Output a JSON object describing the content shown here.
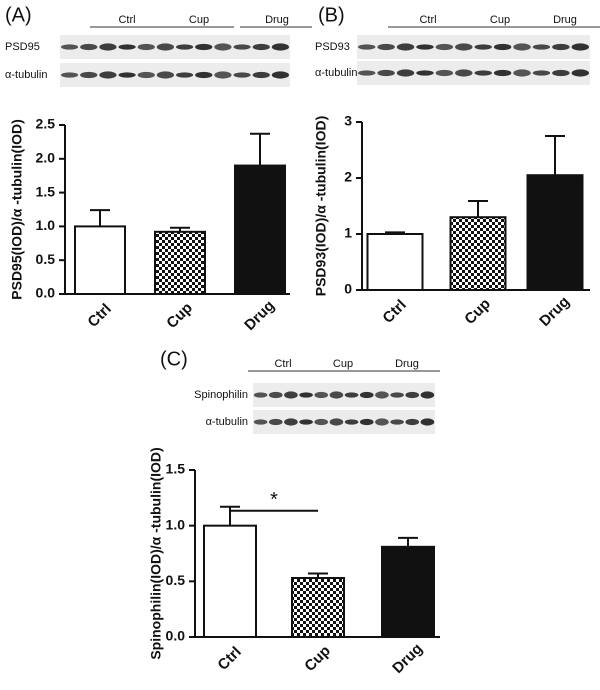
{
  "chart_data": [
    {
      "type": "bar",
      "panel_label": "(A)",
      "blot": {
        "groups": [
          "Ctrl",
          "Cup",
          "Drug"
        ],
        "rows": [
          "PSD95",
          "α-tubulin"
        ]
      },
      "y_label": "PSD95(IOD)/α -tubulin(IOD)",
      "categories": [
        "Ctrl",
        "Cup",
        "Drug"
      ],
      "values": [
        1.0,
        0.92,
        1.9
      ],
      "errors": [
        0.24,
        0.06,
        0.47
      ],
      "fills": [
        "#ffffff",
        "checker",
        "#111111"
      ],
      "ylim": [
        0,
        2.5
      ],
      "yticks": [
        {
          "value": 0,
          "label": "0.0"
        },
        0.5,
        {
          "value": 1,
          "label": "1.0"
        },
        1.5,
        {
          "value": 2,
          "label": "2.0"
        },
        2.5
      ]
    },
    {
      "type": "bar",
      "panel_label": "(B)",
      "blot": {
        "groups": [
          "Ctrl",
          "Cup",
          "Drug"
        ],
        "rows": [
          "PSD93",
          "α-tubulin"
        ]
      },
      "y_label": "PSD93(IOD)/α -tubulin(IOD)",
      "categories": [
        "Ctrl",
        "Cup",
        "Drug"
      ],
      "values": [
        1.0,
        1.3,
        2.05
      ],
      "errors": [
        0.03,
        0.29,
        0.7
      ],
      "fills": [
        "#ffffff",
        "checker",
        "#111111"
      ],
      "ylim": [
        0,
        3
      ],
      "yticks": [
        0,
        1,
        2,
        3
      ]
    },
    {
      "type": "bar",
      "panel_label": "(C)",
      "blot": {
        "groups": [
          "Ctrl",
          "Cup",
          "Drug"
        ],
        "rows": [
          "Spinophilin",
          "α-tubulin"
        ]
      },
      "y_label": "Spinophilin(IOD)/α -tubulin(IOD)",
      "categories": [
        "Ctrl",
        "Cup",
        "Drug"
      ],
      "values": [
        1.0,
        0.53,
        0.81
      ],
      "errors": [
        0.17,
        0.04,
        0.08
      ],
      "fills": [
        "#ffffff",
        "checker",
        "#111111"
      ],
      "annotation": "*",
      "ylim": [
        0,
        1.5
      ],
      "yticks": [
        {
          "value": 0,
          "label": "0.0"
        },
        0.5,
        {
          "value": 1,
          "label": "1.0"
        },
        1.5
      ]
    }
  ]
}
